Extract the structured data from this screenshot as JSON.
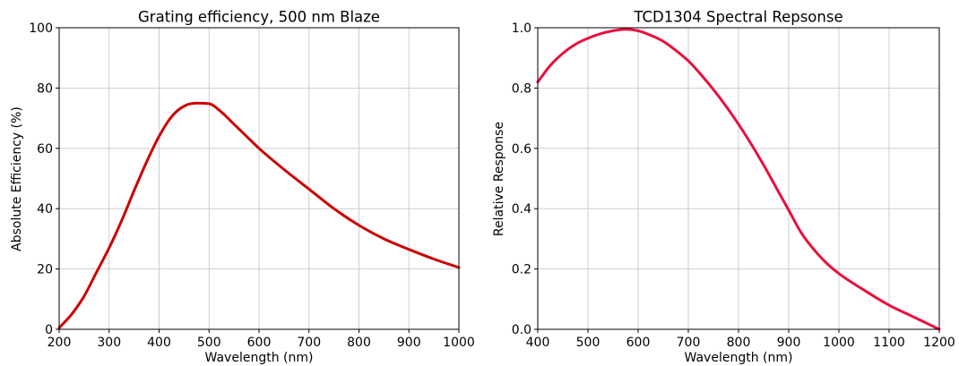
{
  "chart_data": [
    {
      "type": "line",
      "title": "Grating efficiency, 500 nm Blaze",
      "xlabel": "Wavelength (nm)",
      "ylabel": "Absolute Efficiency (%)",
      "xlim": [
        200,
        1000
      ],
      "ylim": [
        0,
        100
      ],
      "xticks": [
        "200",
        "300",
        "400",
        "500",
        "600",
        "700",
        "800",
        "900",
        "1000"
      ],
      "yticks": [
        "0",
        "20",
        "40",
        "60",
        "80",
        "100"
      ],
      "grid": true,
      "color": "#cc0000",
      "series": [
        {
          "x": [
            200,
            225,
            250,
            275,
            300,
            325,
            350,
            375,
            400,
            425,
            450,
            475,
            500,
            525,
            550,
            575,
            600,
            650,
            700,
            750,
            800,
            850,
            900,
            950,
            1000
          ],
          "y": [
            0.5,
            5,
            11,
            19,
            27,
            36,
            46,
            55.5,
            64,
            70.5,
            74,
            75,
            74.8,
            72,
            68,
            64,
            60,
            53,
            46.5,
            40,
            34.5,
            30,
            26.5,
            23.3,
            20.5
          ]
        }
      ]
    },
    {
      "type": "line",
      "title": "TCD1304 Spectral Repsonse",
      "xlabel": "Wavelength (nm)",
      "ylabel": "Relative Response",
      "xlim": [
        400,
        1200
      ],
      "ylim": [
        0,
        1.0
      ],
      "xticks": [
        "400",
        "500",
        "600",
        "700",
        "800",
        "900",
        "1000",
        "1100",
        "1200"
      ],
      "yticks": [
        "0.0",
        "0.2",
        "0.4",
        "0.6",
        "0.8",
        "1.0"
      ],
      "grid": true,
      "color": "#e8103c",
      "series": [
        {
          "x": [
            400,
            425,
            450,
            475,
            500,
            525,
            550,
            575,
            600,
            625,
            650,
            675,
            700,
            725,
            750,
            775,
            800,
            825,
            850,
            875,
            900,
            925,
            950,
            975,
            1000,
            1050,
            1100,
            1150,
            1200
          ],
          "y": [
            0.82,
            0.875,
            0.915,
            0.945,
            0.965,
            0.98,
            0.99,
            0.995,
            0.99,
            0.975,
            0.955,
            0.925,
            0.89,
            0.845,
            0.795,
            0.74,
            0.68,
            0.615,
            0.545,
            0.47,
            0.395,
            0.32,
            0.265,
            0.22,
            0.185,
            0.13,
            0.08,
            0.04,
            0.0
          ]
        }
      ]
    }
  ]
}
